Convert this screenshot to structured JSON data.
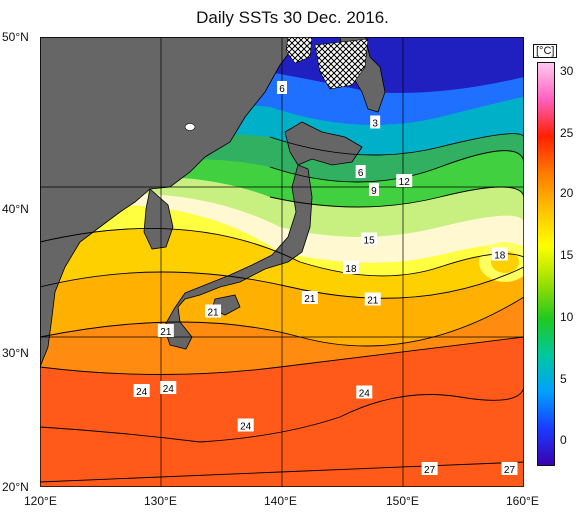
{
  "title": "Daily SSTs 30 Dec. 2016.",
  "map": {
    "lon_range": [
      120,
      160
    ],
    "lat_range": [
      20,
      50
    ],
    "x_ticks": [
      "120°E",
      "130°E",
      "140°E",
      "150°E",
      "160°E"
    ],
    "y_ticks": [
      "50°N",
      "40°N",
      "30°N",
      "20°N"
    ],
    "land_color": "#666666",
    "grid_color": "#000000"
  },
  "colorbar": {
    "unit": "[°C]",
    "ticks": [
      "30",
      "25",
      "20",
      "15",
      "10",
      "5",
      "0"
    ],
    "min": -2,
    "max": 32,
    "colors": [
      "#3a00b0",
      "#1a3cff",
      "#00a0ff",
      "#00c8a0",
      "#20c820",
      "#9ee000",
      "#ffff00",
      "#ffc000",
      "#ff7a00",
      "#ff2000",
      "#ff60c0",
      "#ffc8f0"
    ]
  },
  "contour_labels": [
    {
      "text": "6",
      "lon": 140.0,
      "lat": 46.6
    },
    {
      "text": "3",
      "lon": 147.7,
      "lat": 44.3
    },
    {
      "text": "6",
      "lon": 146.5,
      "lat": 41.0
    },
    {
      "text": "9",
      "lon": 147.6,
      "lat": 39.8
    },
    {
      "text": "12",
      "lon": 150.1,
      "lat": 40.4
    },
    {
      "text": "15",
      "lon": 147.2,
      "lat": 36.5
    },
    {
      "text": "18",
      "lon": 158.0,
      "lat": 35.5
    },
    {
      "text": "18",
      "lon": 145.7,
      "lat": 34.6
    },
    {
      "text": "21",
      "lon": 134.3,
      "lat": 31.7
    },
    {
      "text": "21",
      "lon": 142.3,
      "lat": 32.6
    },
    {
      "text": "21",
      "lon": 147.5,
      "lat": 32.5
    },
    {
      "text": "21",
      "lon": 130.4,
      "lat": 30.4
    },
    {
      "text": "24",
      "lon": 128.4,
      "lat": 26.4
    },
    {
      "text": "24",
      "lon": 130.6,
      "lat": 26.6
    },
    {
      "text": "24",
      "lon": 146.8,
      "lat": 26.3
    },
    {
      "text": "24",
      "lon": 137.0,
      "lat": 24.1
    },
    {
      "text": "27",
      "lon": 152.2,
      "lat": 21.2
    },
    {
      "text": "27",
      "lon": 158.8,
      "lat": 21.2
    }
  ]
}
